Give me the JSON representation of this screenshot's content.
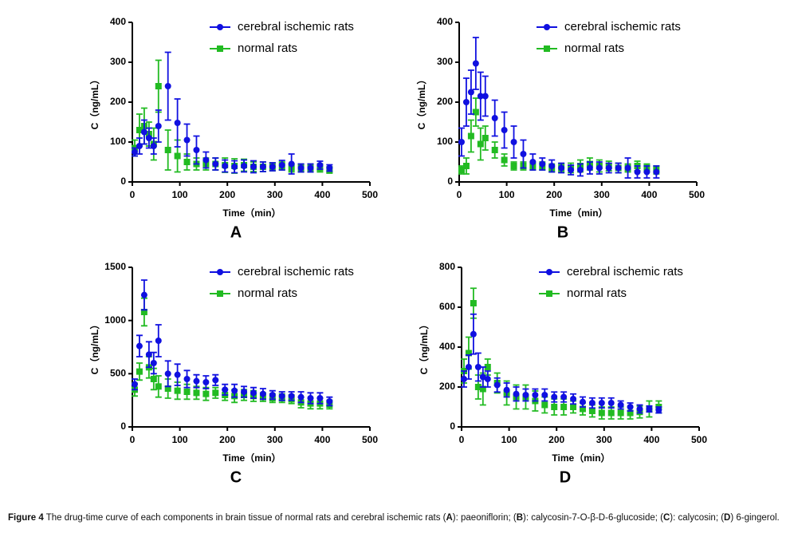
{
  "chart_data": [
    {
      "type": "line",
      "panel_label": "A",
      "xlabel": "Time（min）",
      "ylabel": "C（ng/mL）",
      "legend": "upper right",
      "x": [
        5,
        15,
        25,
        35,
        45,
        55,
        75,
        95,
        115,
        135,
        155,
        175,
        195,
        215,
        235,
        255,
        275,
        295,
        315,
        335,
        355,
        375,
        395,
        415
      ],
      "xlim": [
        0,
        500
      ],
      "xticks": [
        0,
        100,
        200,
        300,
        400,
        500
      ],
      "ylim": [
        0,
        400
      ],
      "yticks": [
        0,
        100,
        200,
        300,
        400
      ],
      "series": [
        {
          "name": "cerebral ischemic rats",
          "color": "#1010e0",
          "marker": "circle",
          "values": [
            75,
            90,
            125,
            110,
            90,
            140,
            240,
            148,
            105,
            80,
            55,
            45,
            40,
            38,
            40,
            38,
            38,
            38,
            42,
            45,
            35,
            35,
            42,
            35
          ],
          "errors": [
            10,
            20,
            30,
            25,
            20,
            40,
            85,
            60,
            40,
            35,
            20,
            15,
            15,
            15,
            15,
            15,
            12,
            10,
            12,
            25,
            10,
            10,
            10,
            8
          ]
        },
        {
          "name": "normal rats",
          "color": "#22bb22",
          "marker": "square",
          "values": [
            85,
            130,
            140,
            120,
            95,
            240,
            80,
            65,
            50,
            45,
            45,
            45,
            42,
            40,
            42,
            38,
            38,
            38,
            40,
            35,
            35,
            35,
            35,
            30
          ],
          "errors": [
            20,
            40,
            45,
            30,
            40,
            65,
            50,
            40,
            20,
            15,
            15,
            15,
            18,
            18,
            15,
            12,
            12,
            10,
            10,
            10,
            10,
            10,
            10,
            8
          ]
        }
      ]
    },
    {
      "type": "line",
      "panel_label": "B",
      "xlabel": "Time（min）",
      "ylabel": "C（ng/mL）",
      "legend": "upper right",
      "x": [
        5,
        15,
        25,
        35,
        45,
        55,
        75,
        95,
        115,
        135,
        155,
        175,
        195,
        215,
        235,
        255,
        275,
        295,
        315,
        335,
        355,
        375,
        395,
        415
      ],
      "xlim": [
        0,
        500
      ],
      "xticks": [
        0,
        100,
        200,
        300,
        400,
        500
      ],
      "ylim": [
        0,
        400
      ],
      "yticks": [
        0,
        100,
        200,
        300,
        400
      ],
      "series": [
        {
          "name": "cerebral ischemic rats",
          "color": "#1010e0",
          "marker": "circle",
          "values": [
            100,
            200,
            225,
            297,
            215,
            215,
            160,
            130,
            100,
            70,
            50,
            45,
            40,
            35,
            30,
            30,
            35,
            35,
            35,
            35,
            35,
            25,
            25,
            25
          ],
          "errors": [
            35,
            60,
            55,
            65,
            60,
            50,
            45,
            45,
            40,
            35,
            20,
            15,
            15,
            12,
            12,
            15,
            15,
            15,
            12,
            12,
            25,
            15,
            15,
            15
          ]
        },
        {
          "name": "normal rats",
          "color": "#22bb22",
          "marker": "square",
          "values": [
            30,
            40,
            115,
            175,
            95,
            110,
            80,
            55,
            40,
            40,
            40,
            40,
            35,
            35,
            35,
            40,
            45,
            40,
            40,
            35,
            35,
            40,
            35,
            30
          ],
          "errors": [
            10,
            20,
            40,
            35,
            40,
            30,
            20,
            15,
            10,
            10,
            10,
            10,
            10,
            10,
            12,
            15,
            15,
            15,
            12,
            12,
            10,
            12,
            10,
            10
          ]
        }
      ]
    },
    {
      "type": "line",
      "panel_label": "C",
      "xlabel": "Time（min）",
      "ylabel": "C（ng/mL）",
      "legend": "upper right",
      "x": [
        5,
        15,
        25,
        35,
        45,
        55,
        75,
        95,
        115,
        135,
        155,
        175,
        195,
        215,
        235,
        255,
        275,
        295,
        315,
        335,
        355,
        375,
        395,
        415
      ],
      "xlim": [
        0,
        500
      ],
      "xticks": [
        0,
        100,
        200,
        300,
        400,
        500
      ],
      "ylim": [
        0,
        1500
      ],
      "yticks": [
        0,
        500,
        1000,
        1500
      ],
      "series": [
        {
          "name": "cerebral ischemic rats",
          "color": "#1010e0",
          "marker": "circle",
          "values": [
            400,
            760,
            1240,
            680,
            600,
            810,
            500,
            490,
            450,
            430,
            420,
            440,
            350,
            340,
            330,
            320,
            310,
            300,
            290,
            290,
            280,
            270,
            270,
            240
          ],
          "errors": [
            50,
            100,
            140,
            120,
            100,
            150,
            120,
            100,
            80,
            60,
            60,
            50,
            50,
            60,
            50,
            50,
            50,
            40,
            40,
            40,
            50,
            50,
            50,
            40
          ]
        },
        {
          "name": "normal rats",
          "color": "#22bb22",
          "marker": "square",
          "values": [
            350,
            520,
            1080,
            560,
            450,
            380,
            360,
            340,
            330,
            320,
            310,
            320,
            300,
            290,
            300,
            290,
            280,
            270,
            270,
            260,
            230,
            220,
            220,
            210
          ],
          "errors": [
            60,
            80,
            130,
            100,
            100,
            100,
            90,
            80,
            70,
            60,
            60,
            50,
            50,
            60,
            50,
            50,
            40,
            40,
            40,
            40,
            50,
            50,
            50,
            40
          ]
        }
      ]
    },
    {
      "type": "line",
      "panel_label": "D",
      "xlabel": "Time（min）",
      "ylabel": "C（ng/mL）",
      "legend": "upper right",
      "x": [
        5,
        15,
        25,
        35,
        45,
        55,
        75,
        95,
        115,
        135,
        155,
        175,
        195,
        215,
        235,
        255,
        275,
        295,
        315,
        335,
        355,
        375,
        395,
        415
      ],
      "xlim": [
        0,
        500
      ],
      "xticks": [
        0,
        100,
        200,
        300,
        400,
        500
      ],
      "ylim": [
        0,
        800
      ],
      "yticks": [
        0,
        200,
        400,
        600,
        800
      ],
      "series": [
        {
          "name": "cerebral ischemic rats",
          "color": "#1010e0",
          "marker": "circle",
          "values": [
            240,
            300,
            465,
            300,
            250,
            240,
            210,
            185,
            165,
            160,
            160,
            160,
            150,
            150,
            140,
            125,
            120,
            120,
            120,
            110,
            100,
            90,
            90,
            85
          ],
          "errors": [
            40,
            60,
            100,
            70,
            50,
            40,
            35,
            35,
            35,
            30,
            30,
            30,
            25,
            25,
            25,
            25,
            25,
            25,
            25,
            20,
            20,
            20,
            15,
            15
          ]
        },
        {
          "name": "normal rats",
          "color": "#22bb22",
          "marker": "square",
          "values": [
            280,
            370,
            620,
            200,
            190,
            300,
            220,
            170,
            150,
            150,
            130,
            110,
            100,
            100,
            100,
            90,
            80,
            70,
            70,
            70,
            70,
            75,
            90,
            100
          ],
          "errors": [
            60,
            80,
            75,
            60,
            80,
            40,
            50,
            60,
            60,
            60,
            50,
            40,
            40,
            40,
            30,
            30,
            30,
            30,
            30,
            30,
            30,
            30,
            40,
            30
          ]
        }
      ]
    }
  ],
  "caption": [
    "Figure 4",
    " The drug-time curve of each components in brain tissue of normal rats and cerebral ischemic rats (",
    "A",
    "): paeoniflorin; (",
    "B",
    "): calycosin-7-O-β-D-6-glucoside; (",
    "C",
    "): calycosin; (",
    "D",
    ") 6-gingerol."
  ]
}
